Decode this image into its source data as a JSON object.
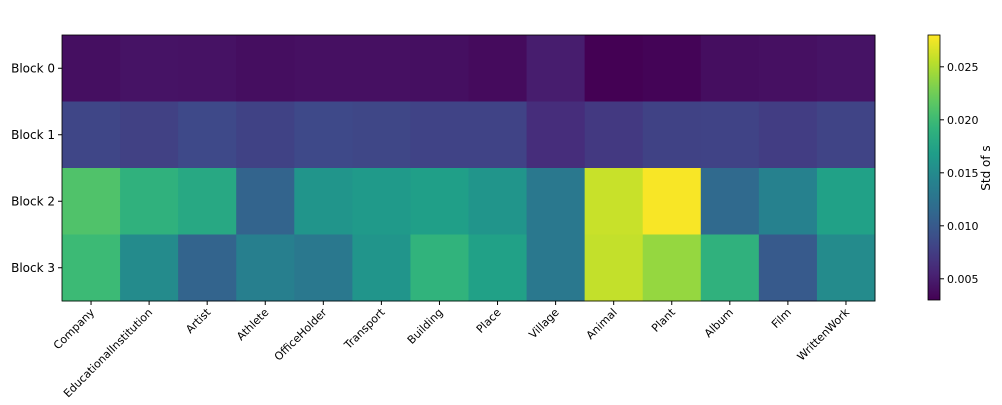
{
  "chart_data": {
    "type": "heatmap",
    "rows": [
      "Block 0",
      "Block 1",
      "Block 2",
      "Block 3"
    ],
    "columns": [
      "Company",
      "EducationalInstitution",
      "Artist",
      "Athlete",
      "OfficeHolder",
      "Transport",
      "Building",
      "Place",
      "Village",
      "Animal",
      "Plant",
      "Album",
      "Film",
      "WrittenWork"
    ],
    "values": [
      [
        0.004,
        0.0043,
        0.0042,
        0.0039,
        0.0041,
        0.0041,
        0.004,
        0.0037,
        0.005,
        0.003,
        0.0032,
        0.0039,
        0.0041,
        0.0043
      ],
      [
        0.0082,
        0.0078,
        0.0085,
        0.0079,
        0.0085,
        0.0083,
        0.008,
        0.008,
        0.0062,
        0.0072,
        0.0079,
        0.008,
        0.0075,
        0.0081
      ],
      [
        0.021,
        0.019,
        0.018,
        0.011,
        0.016,
        0.0165,
        0.017,
        0.016,
        0.013,
        0.026,
        0.0278,
        0.0115,
        0.014,
        0.0172
      ],
      [
        0.02,
        0.015,
        0.011,
        0.0138,
        0.013,
        0.016,
        0.0192,
        0.0172,
        0.013,
        0.0258,
        0.024,
        0.019,
        0.01,
        0.015
      ]
    ],
    "colormap": "viridis",
    "zlim": [
      0.003,
      0.028
    ],
    "zticks": [
      0.005,
      {
        "value": 0.01,
        "label": "0.010"
      },
      0.015,
      {
        "value": 0.02,
        "label": "0.020"
      },
      0.025
    ],
    "colorbar_label": "Std of s"
  }
}
